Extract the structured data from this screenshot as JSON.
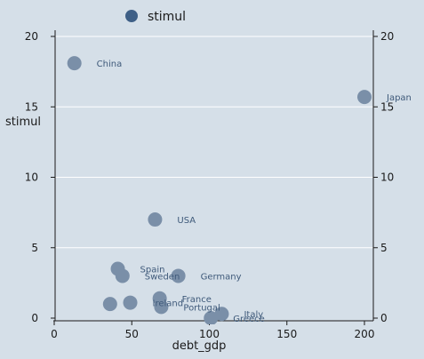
{
  "chart_data": {
    "type": "scatter",
    "legend": {
      "label": "stimul",
      "color": "#3e5f86",
      "placement": "top-left"
    },
    "xlabel": "debt_gdp",
    "ylabel": "stimul",
    "xlim": [
      0,
      205
    ],
    "ylim": [
      0,
      21.5
    ],
    "xticks": [
      0,
      50,
      100,
      150,
      200
    ],
    "yticks": [
      0,
      5,
      10,
      15,
      20
    ],
    "grid": {
      "horizontal": true,
      "vertical": false
    },
    "marker_color": "#7a8fa8",
    "points": [
      {
        "label": "China",
        "x": 13,
        "y": 18.1
      },
      {
        "label": "Japan",
        "x": 200,
        "y": 15.7
      },
      {
        "label": "USA",
        "x": 65,
        "y": 7.0
      },
      {
        "label": "Spain",
        "x": 41,
        "y": 3.5
      },
      {
        "label": "Sweden",
        "x": 44,
        "y": 3.0
      },
      {
        "label": "Germany",
        "x": 80,
        "y": 3.0
      },
      {
        "label": "France",
        "x": 68,
        "y": 1.4
      },
      {
        "label": "Portugal",
        "x": 69,
        "y": 0.8
      },
      {
        "label": "Ireland",
        "x": 49,
        "y": 1.1
      },
      {
        "label": "",
        "x": 36,
        "y": 1.0
      },
      {
        "label": "Italy",
        "x": 108,
        "y": 0.3
      },
      {
        "label": "Greece",
        "x": 101,
        "y": 0.0
      }
    ]
  }
}
